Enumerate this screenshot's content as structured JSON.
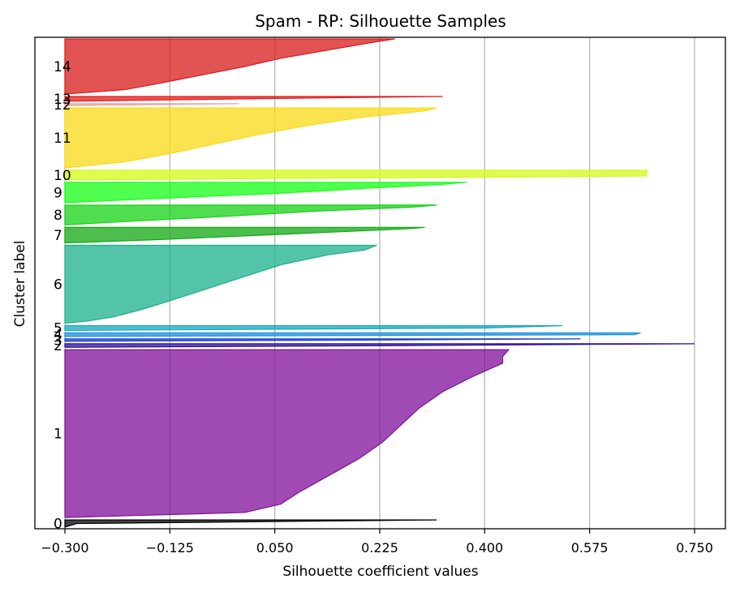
{
  "chart_data": {
    "type": "area",
    "title": "Spam - RP: Silhouette Samples",
    "xlabel": "Silhouette coefficient values",
    "ylabel": "Cluster label",
    "xlim": [
      -0.3,
      0.8
    ],
    "x_ticks": [
      -0.3,
      -0.125,
      0.05,
      0.225,
      0.4,
      0.575,
      0.75
    ],
    "x_tick_labels": [
      "−0.300",
      "−0.125",
      "0.050",
      "0.225",
      "0.400",
      "0.575",
      "0.750"
    ],
    "grid": "x",
    "clusters": [
      {
        "label": "0",
        "color": "#000000",
        "size": 12,
        "profile": [
          [
            0,
            0.32
          ],
          [
            0.5,
            -0.28
          ],
          [
            1,
            -0.3
          ]
        ]
      },
      {
        "label": "1",
        "color": "#7f0f99",
        "size": 280,
        "profile": [
          [
            0,
            0.44
          ],
          [
            0.04,
            0.43
          ],
          [
            0.08,
            0.43
          ],
          [
            0.16,
            0.38
          ],
          [
            0.25,
            0.33
          ],
          [
            0.35,
            0.29
          ],
          [
            0.45,
            0.26
          ],
          [
            0.55,
            0.23
          ],
          [
            0.65,
            0.19
          ],
          [
            0.75,
            0.14
          ],
          [
            0.85,
            0.09
          ],
          [
            0.92,
            0.06
          ],
          [
            0.97,
            0.0
          ],
          [
            1,
            -0.3
          ]
        ]
      },
      {
        "label": "2",
        "color": "#2e0fa0",
        "size": 6,
        "profile": [
          [
            0,
            0.75
          ],
          [
            0.5,
            0.3
          ],
          [
            1,
            -0.3
          ]
        ]
      },
      {
        "label": "3",
        "color": "#1a3fcf",
        "size": 4,
        "profile": [
          [
            0,
            0.56
          ],
          [
            0.5,
            0.2
          ],
          [
            1,
            -0.3
          ]
        ]
      },
      {
        "label": "4",
        "color": "#1a90dc",
        "size": 6,
        "profile": [
          [
            0,
            0.66
          ],
          [
            0.5,
            0.65
          ],
          [
            1,
            -0.3
          ]
        ]
      },
      {
        "label": "5",
        "color": "#13a8bf",
        "size": 8,
        "profile": [
          [
            0,
            0.53
          ],
          [
            0.5,
            0.4
          ],
          [
            1,
            -0.3
          ]
        ]
      },
      {
        "label": "6",
        "color": "#1bb08c",
        "size": 130,
        "profile": [
          [
            0,
            0.22
          ],
          [
            0.06,
            0.2
          ],
          [
            0.12,
            0.14
          ],
          [
            0.25,
            0.06
          ],
          [
            0.4,
            0.0
          ],
          [
            0.55,
            -0.06
          ],
          [
            0.7,
            -0.12
          ],
          [
            0.82,
            -0.17
          ],
          [
            0.92,
            -0.22
          ],
          [
            0.97,
            -0.26
          ],
          [
            1,
            -0.3
          ]
        ]
      },
      {
        "label": "7",
        "color": "#11a811",
        "size": 26,
        "profile": [
          [
            0,
            0.3
          ],
          [
            0.1,
            0.27
          ],
          [
            0.3,
            0.15
          ],
          [
            0.55,
            0.0
          ],
          [
            0.8,
            -0.15
          ],
          [
            1,
            -0.3
          ]
        ]
      },
      {
        "label": "8",
        "color": "#15d115",
        "size": 33,
        "profile": [
          [
            0,
            0.32
          ],
          [
            0.1,
            0.28
          ],
          [
            0.3,
            0.12
          ],
          [
            0.55,
            -0.02
          ],
          [
            0.8,
            -0.18
          ],
          [
            1,
            -0.3
          ]
        ]
      },
      {
        "label": "9",
        "color": "#15ff15",
        "size": 34,
        "profile": [
          [
            0,
            0.37
          ],
          [
            0.1,
            0.33
          ],
          [
            0.3,
            0.2
          ],
          [
            0.55,
            0.05
          ],
          [
            0.8,
            -0.15
          ],
          [
            1,
            -0.3
          ]
        ]
      },
      {
        "label": "10",
        "color": "#d1f915",
        "size": 16,
        "profile": [
          [
            0,
            0.67
          ],
          [
            0.6,
            0.67
          ],
          [
            1,
            -0.3
          ]
        ]
      },
      {
        "label": "11",
        "color": "#f9d915",
        "size": 100,
        "profile": [
          [
            0,
            0.32
          ],
          [
            0.05,
            0.3
          ],
          [
            0.15,
            0.2
          ],
          [
            0.3,
            0.1
          ],
          [
            0.45,
            0.02
          ],
          [
            0.6,
            -0.05
          ],
          [
            0.75,
            -0.12
          ],
          [
            0.9,
            -0.2
          ],
          [
            1,
            -0.3
          ]
        ]
      },
      {
        "label": "12",
        "color": "#f2a0a0",
        "size": 3,
        "profile": [
          [
            0,
            -0.01
          ],
          [
            1,
            -0.3
          ]
        ]
      },
      {
        "label": "13",
        "color": "#e41a1a",
        "size": 8,
        "profile": [
          [
            0,
            0.33
          ],
          [
            0.5,
            0.0
          ],
          [
            1,
            -0.3
          ]
        ]
      },
      {
        "label": "14",
        "color": "#d81a1a",
        "size": 92,
        "profile": [
          [
            0,
            0.25
          ],
          [
            0.05,
            0.22
          ],
          [
            0.2,
            0.14
          ],
          [
            0.35,
            0.06
          ],
          [
            0.5,
            0.0
          ],
          [
            0.65,
            -0.07
          ],
          [
            0.8,
            -0.14
          ],
          [
            0.92,
            -0.2
          ],
          [
            1,
            -0.3
          ]
        ]
      }
    ]
  }
}
